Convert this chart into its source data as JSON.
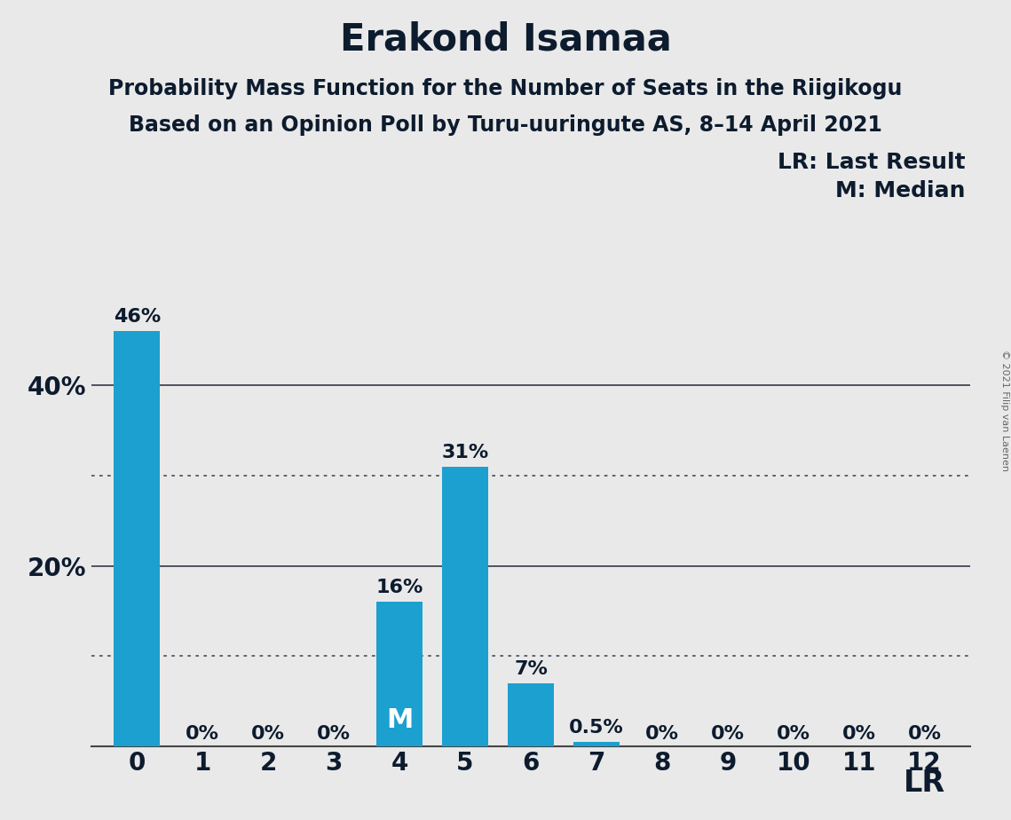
{
  "title": "Erakond Isamaa",
  "subtitle1": "Probability Mass Function for the Number of Seats in the Riigikogu",
  "subtitle2": "Based on an Opinion Poll by Turu-uuringute AS, 8–14 April 2021",
  "copyright": "© 2021 Filip van Laenen",
  "categories": [
    0,
    1,
    2,
    3,
    4,
    5,
    6,
    7,
    8,
    9,
    10,
    11,
    12
  ],
  "values": [
    46,
    0,
    0,
    0,
    16,
    31,
    7,
    0.5,
    0,
    0,
    0,
    0,
    0
  ],
  "labels": [
    "46%",
    "0%",
    "0%",
    "0%",
    "16%",
    "31%",
    "7%",
    "0.5%",
    "0%",
    "0%",
    "0%",
    "0%",
    "0%"
  ],
  "bar_color": "#1ca0d0",
  "background_color": "#e9e9e9",
  "median_seat": 4,
  "last_result_seat": 12,
  "lr_label": "LR",
  "lr_legend": "LR: Last Result",
  "m_legend": "M: Median",
  "ylim": [
    0,
    50
  ],
  "dotted_lines": [
    10,
    30
  ],
  "solid_lines": [
    20,
    40
  ],
  "ytick_positions": [
    20,
    40
  ],
  "ytick_labels": [
    "20%",
    "40%"
  ],
  "title_fontsize": 30,
  "subtitle_fontsize": 17,
  "label_fontsize": 16,
  "tick_fontsize": 20,
  "legend_fontsize": 18,
  "lr_fontsize": 24
}
